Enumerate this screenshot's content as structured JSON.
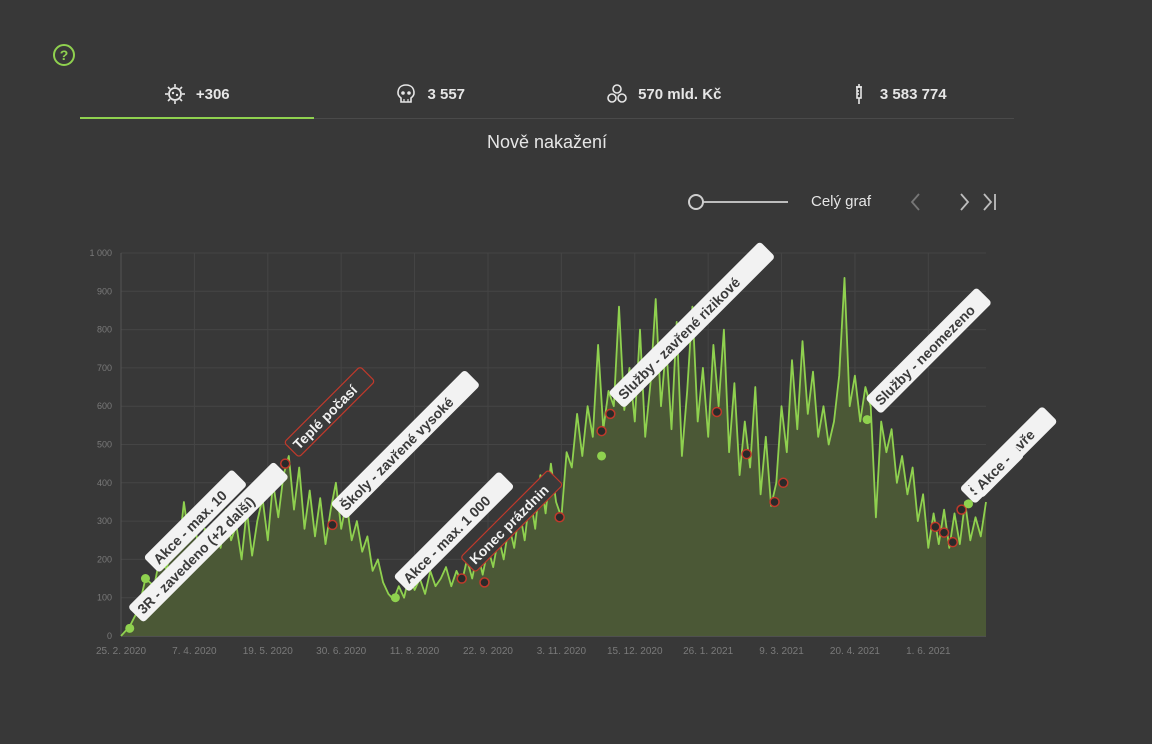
{
  "header": {
    "tabs": [
      {
        "id": "cases",
        "icon": "virus-icon",
        "label": "+306",
        "active": true
      },
      {
        "id": "deaths",
        "icon": "skull-icon",
        "label": "3 557",
        "active": false
      },
      {
        "id": "cost",
        "icon": "coins-icon",
        "label": "570 mld. Kč",
        "active": false
      },
      {
        "id": "vaccines",
        "icon": "syringe-icon",
        "label": "3 583 774",
        "active": false
      }
    ]
  },
  "chart_title": "Nově nakažení",
  "controls": {
    "range_label": "Celý graf"
  },
  "colors": {
    "accent": "#8fd14f",
    "area": "#4c5a36",
    "background": "#383838",
    "grid": "#454545",
    "marker_dark": "#2a2a2a",
    "marker_red": "#c0392b"
  },
  "chart_data": {
    "type": "area",
    "title": "Nově nakažení",
    "ylim": [
      0,
      1000
    ],
    "x_start": "2020-02-25",
    "x_end": "2021-07-04",
    "yticks": [
      {
        "value": 0,
        "label": "0"
      },
      {
        "value": 100,
        "label": "100"
      },
      {
        "value": 200,
        "label": "200"
      },
      {
        "value": 300,
        "label": "300"
      },
      {
        "value": 400,
        "label": "400"
      },
      {
        "value": 500,
        "label": "500"
      },
      {
        "value": 600,
        "label": "600"
      },
      {
        "value": 700,
        "label": "700"
      },
      {
        "value": 800,
        "label": "800"
      },
      {
        "value": 900,
        "label": "900"
      },
      {
        "value": 1000,
        "label": "1 000"
      }
    ],
    "xticks": [
      {
        "date": "2020-02-25",
        "label": "25. 2. 2020"
      },
      {
        "date": "2020-04-07",
        "label": "7. 4. 2020"
      },
      {
        "date": "2020-05-19",
        "label": "19. 5. 2020"
      },
      {
        "date": "2020-06-30",
        "label": "30. 6. 2020"
      },
      {
        "date": "2020-08-11",
        "label": "11. 8. 2020"
      },
      {
        "date": "2020-09-22",
        "label": "22. 9. 2020"
      },
      {
        "date": "2020-11-03",
        "label": "3. 11. 2020"
      },
      {
        "date": "2020-12-15",
        "label": "15. 12. 2020"
      },
      {
        "date": "2021-01-26",
        "label": "26. 1. 2021"
      },
      {
        "date": "2021-03-09",
        "label": "9. 3. 2021"
      },
      {
        "date": "2021-04-20",
        "label": "20. 4. 2021"
      },
      {
        "date": "2021-06-01",
        "label": "1. 6. 2021"
      }
    ],
    "points": [
      [
        "2020-02-25",
        0
      ],
      [
        "2020-03-01",
        25
      ],
      [
        "2020-03-06",
        70
      ],
      [
        "2020-03-10",
        150
      ],
      [
        "2020-03-15",
        130
      ],
      [
        "2020-03-18",
        200
      ],
      [
        "2020-03-22",
        175
      ],
      [
        "2020-03-26",
        240
      ],
      [
        "2020-03-29",
        220
      ],
      [
        "2020-04-01",
        350
      ],
      [
        "2020-04-04",
        250
      ],
      [
        "2020-04-07",
        300
      ],
      [
        "2020-04-10",
        210
      ],
      [
        "2020-04-13",
        280
      ],
      [
        "2020-04-16",
        240
      ],
      [
        "2020-04-19",
        300
      ],
      [
        "2020-04-22",
        230
      ],
      [
        "2020-04-25",
        330
      ],
      [
        "2020-04-28",
        250
      ],
      [
        "2020-05-01",
        290
      ],
      [
        "2020-05-04",
        200
      ],
      [
        "2020-05-07",
        330
      ],
      [
        "2020-05-10",
        210
      ],
      [
        "2020-05-13",
        300
      ],
      [
        "2020-05-16",
        360
      ],
      [
        "2020-05-19",
        250
      ],
      [
        "2020-05-22",
        400
      ],
      [
        "2020-05-25",
        310
      ],
      [
        "2020-05-28",
        420
      ],
      [
        "2020-05-31",
        470
      ],
      [
        "2020-06-03",
        330
      ],
      [
        "2020-06-06",
        440
      ],
      [
        "2020-06-09",
        280
      ],
      [
        "2020-06-12",
        380
      ],
      [
        "2020-06-15",
        260
      ],
      [
        "2020-06-18",
        360
      ],
      [
        "2020-06-21",
        240
      ],
      [
        "2020-06-24",
        330
      ],
      [
        "2020-06-27",
        400
      ],
      [
        "2020-06-30",
        280
      ],
      [
        "2020-07-03",
        350
      ],
      [
        "2020-07-06",
        250
      ],
      [
        "2020-07-09",
        300
      ],
      [
        "2020-07-12",
        220
      ],
      [
        "2020-07-15",
        260
      ],
      [
        "2020-07-18",
        170
      ],
      [
        "2020-07-21",
        200
      ],
      [
        "2020-07-24",
        140
      ],
      [
        "2020-07-27",
        110
      ],
      [
        "2020-07-30",
        95
      ],
      [
        "2020-08-02",
        130
      ],
      [
        "2020-08-05",
        100
      ],
      [
        "2020-08-08",
        160
      ],
      [
        "2020-08-11",
        120
      ],
      [
        "2020-08-14",
        150
      ],
      [
        "2020-08-17",
        110
      ],
      [
        "2020-08-20",
        170
      ],
      [
        "2020-08-23",
        130
      ],
      [
        "2020-08-26",
        150
      ],
      [
        "2020-08-29",
        180
      ],
      [
        "2020-09-01",
        130
      ],
      [
        "2020-09-04",
        170
      ],
      [
        "2020-09-07",
        140
      ],
      [
        "2020-09-10",
        200
      ],
      [
        "2020-09-13",
        150
      ],
      [
        "2020-09-16",
        220
      ],
      [
        "2020-09-19",
        160
      ],
      [
        "2020-09-22",
        230
      ],
      [
        "2020-09-25",
        180
      ],
      [
        "2020-09-28",
        260
      ],
      [
        "2020-10-01",
        200
      ],
      [
        "2020-10-04",
        290
      ],
      [
        "2020-10-07",
        230
      ],
      [
        "2020-10-10",
        330
      ],
      [
        "2020-10-13",
        250
      ],
      [
        "2020-10-16",
        370
      ],
      [
        "2020-10-19",
        280
      ],
      [
        "2020-10-22",
        420
      ],
      [
        "2020-10-25",
        320
      ],
      [
        "2020-10-28",
        450
      ],
      [
        "2020-10-31",
        350
      ],
      [
        "2020-11-03",
        310
      ],
      [
        "2020-11-06",
        480
      ],
      [
        "2020-11-09",
        440
      ],
      [
        "2020-11-12",
        580
      ],
      [
        "2020-11-15",
        470
      ],
      [
        "2020-11-18",
        600
      ],
      [
        "2020-11-21",
        520
      ],
      [
        "2020-11-24",
        760
      ],
      [
        "2020-11-27",
        540
      ],
      [
        "2020-11-30",
        640
      ],
      [
        "2020-12-03",
        600
      ],
      [
        "2020-12-06",
        860
      ],
      [
        "2020-12-09",
        590
      ],
      [
        "2020-12-12",
        700
      ],
      [
        "2020-12-15",
        560
      ],
      [
        "2020-12-18",
        800
      ],
      [
        "2020-12-21",
        520
      ],
      [
        "2020-12-24",
        660
      ],
      [
        "2020-12-27",
        880
      ],
      [
        "2020-12-30",
        600
      ],
      [
        "2021-01-02",
        760
      ],
      [
        "2021-01-05",
        540
      ],
      [
        "2021-01-08",
        820
      ],
      [
        "2021-01-11",
        470
      ],
      [
        "2021-01-14",
        640
      ],
      [
        "2021-01-17",
        860
      ],
      [
        "2021-01-20",
        560
      ],
      [
        "2021-01-23",
        700
      ],
      [
        "2021-01-26",
        520
      ],
      [
        "2021-01-29",
        760
      ],
      [
        "2021-02-01",
        600
      ],
      [
        "2021-02-04",
        800
      ],
      [
        "2021-02-07",
        480
      ],
      [
        "2021-02-10",
        660
      ],
      [
        "2021-02-13",
        420
      ],
      [
        "2021-02-16",
        560
      ],
      [
        "2021-02-19",
        440
      ],
      [
        "2021-02-22",
        650
      ],
      [
        "2021-02-25",
        370
      ],
      [
        "2021-02-28",
        520
      ],
      [
        "2021-03-03",
        340
      ],
      [
        "2021-03-06",
        400
      ],
      [
        "2021-03-09",
        600
      ],
      [
        "2021-03-12",
        480
      ],
      [
        "2021-03-15",
        720
      ],
      [
        "2021-03-18",
        540
      ],
      [
        "2021-03-21",
        770
      ],
      [
        "2021-03-24",
        580
      ],
      [
        "2021-03-27",
        690
      ],
      [
        "2021-03-30",
        520
      ],
      [
        "2021-04-02",
        600
      ],
      [
        "2021-04-05",
        500
      ],
      [
        "2021-04-08",
        560
      ],
      [
        "2021-04-11",
        680
      ],
      [
        "2021-04-14",
        935
      ],
      [
        "2021-04-17",
        600
      ],
      [
        "2021-04-20",
        680
      ],
      [
        "2021-04-23",
        560
      ],
      [
        "2021-04-26",
        650
      ],
      [
        "2021-04-29",
        600
      ],
      [
        "2021-05-02",
        310
      ],
      [
        "2021-05-05",
        560
      ],
      [
        "2021-05-08",
        480
      ],
      [
        "2021-05-11",
        540
      ],
      [
        "2021-05-14",
        400
      ],
      [
        "2021-05-17",
        470
      ],
      [
        "2021-05-20",
        370
      ],
      [
        "2021-05-23",
        440
      ],
      [
        "2021-05-26",
        300
      ],
      [
        "2021-05-29",
        370
      ],
      [
        "2021-06-01",
        230
      ],
      [
        "2021-06-04",
        320
      ],
      [
        "2021-06-07",
        240
      ],
      [
        "2021-06-10",
        330
      ],
      [
        "2021-06-13",
        230
      ],
      [
        "2021-06-16",
        320
      ],
      [
        "2021-06-19",
        240
      ],
      [
        "2021-06-22",
        350
      ],
      [
        "2021-06-25",
        250
      ],
      [
        "2021-06-28",
        310
      ],
      [
        "2021-07-01",
        260
      ],
      [
        "2021-07-04",
        350
      ]
    ],
    "annotations": [
      {
        "label": "3R - zavedeno (+2 další)",
        "date": "2020-03-01",
        "value": 20,
        "style": "light",
        "marker": "green"
      },
      {
        "label": "Akce - max. 10",
        "date": "2020-03-10",
        "value": 150,
        "style": "light",
        "marker": "green"
      },
      {
        "label": "Teplé počasí",
        "date": "2020-05-29",
        "value": 450,
        "style": "dark",
        "marker": "dark"
      },
      {
        "label": "Školy - zavřené vysoké",
        "date": "2020-06-25",
        "value": 290,
        "style": "light",
        "marker": "dark"
      },
      {
        "label": "Akce - max. 1 000",
        "date": "2020-07-31",
        "value": 100,
        "style": "light",
        "marker": "green"
      },
      {
        "label": "Konec prázdnin",
        "date": "2020-09-07",
        "value": 150,
        "style": "dark",
        "marker": "dark"
      },
      {
        "label": "",
        "date": "2020-09-20",
        "value": 140,
        "style": "none",
        "marker": "dark"
      },
      {
        "label": "",
        "date": "2020-11-02",
        "value": 310,
        "style": "none",
        "marker": "dark"
      },
      {
        "label": "",
        "date": "2020-11-26",
        "value": 470,
        "style": "none",
        "marker": "green"
      },
      {
        "label": "",
        "date": "2020-11-26",
        "value": 535,
        "style": "none",
        "marker": "dark"
      },
      {
        "label": "Služby - zavřené rizikové",
        "date": "2020-12-01",
        "value": 580,
        "style": "light",
        "marker": "dark"
      },
      {
        "label": "",
        "date": "2021-01-31",
        "value": 585,
        "style": "none",
        "marker": "dark"
      },
      {
        "label": "",
        "date": "2021-02-17",
        "value": 475,
        "style": "none",
        "marker": "dark"
      },
      {
        "label": "",
        "date": "2021-03-05",
        "value": 350,
        "style": "none",
        "marker": "dark"
      },
      {
        "label": "",
        "date": "2021-03-10",
        "value": 400,
        "style": "none",
        "marker": "dark"
      },
      {
        "label": "Služby - neomezeno",
        "date": "2021-04-27",
        "value": 565,
        "style": "light",
        "marker": "green"
      },
      {
        "label": "",
        "date": "2021-06-05",
        "value": 285,
        "style": "none",
        "marker": "dark"
      },
      {
        "label": "",
        "date": "2021-06-10",
        "value": 270,
        "style": "none",
        "marker": "dark"
      },
      {
        "label": "",
        "date": "2021-06-15",
        "value": 245,
        "style": "none",
        "marker": "dark"
      },
      {
        "label": "Školy - zavře",
        "date": "2021-06-20",
        "value": 330,
        "style": "light",
        "marker": "dark"
      },
      {
        "label": "Akce -",
        "date": "2021-06-24",
        "value": 345,
        "style": "light",
        "marker": "green"
      }
    ]
  }
}
